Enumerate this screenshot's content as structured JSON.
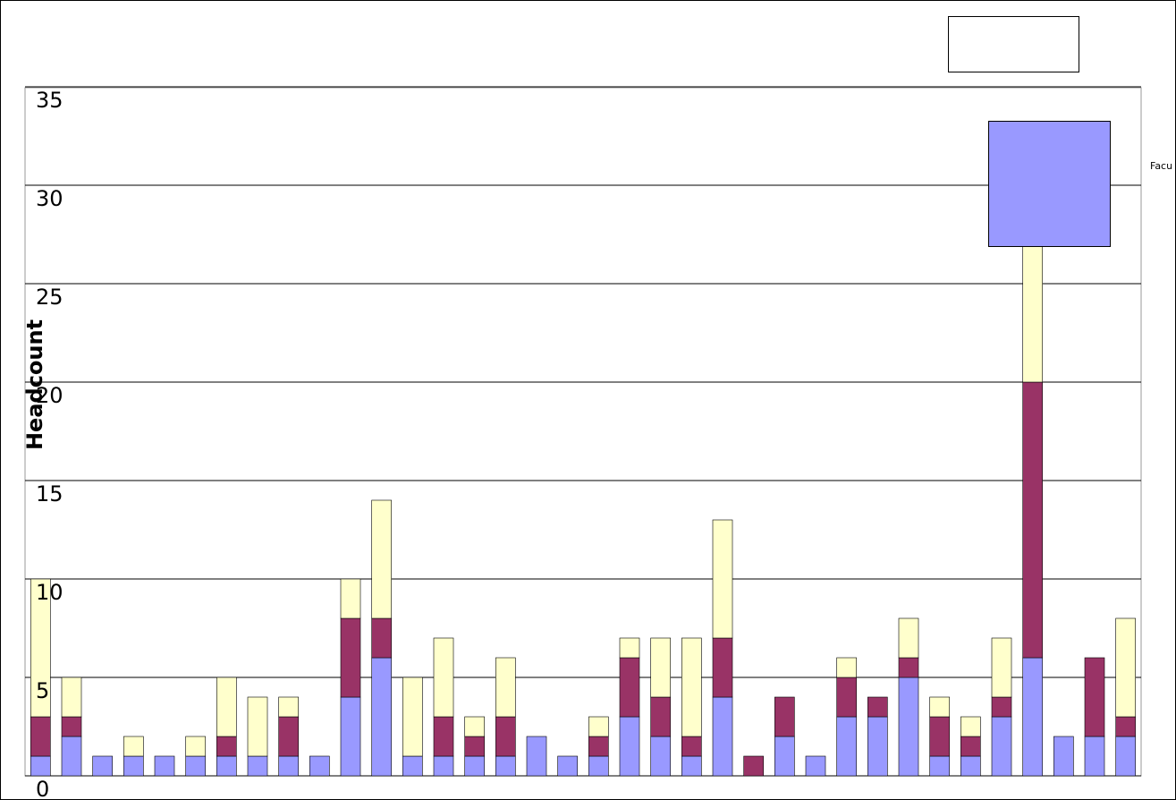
{
  "chart_data": {
    "type": "stacked_bar",
    "y_label": "Headcount",
    "categories": [
      null,
      null,
      null,
      null,
      null,
      null,
      null,
      null,
      null,
      null,
      null,
      null,
      null,
      null,
      null,
      null,
      null,
      null,
      null,
      null,
      null,
      null,
      null,
      null,
      null,
      null,
      null,
      null,
      null,
      null,
      null,
      null,
      null,
      null,
      null,
      null
    ],
    "series": [
      {
        "name": "Facu",
        "color": "#9999ff",
        "values": [
          1,
          2,
          1,
          1,
          1,
          1,
          1,
          1,
          1,
          1,
          4,
          6,
          1,
          1,
          1,
          1,
          2,
          1,
          1,
          3,
          2,
          1,
          4,
          0,
          2,
          1,
          3,
          3,
          5,
          1,
          1,
          3,
          6,
          2,
          2,
          2
        ]
      },
      {
        "name": null,
        "color": "#993366",
        "values": [
          2,
          1,
          0,
          0,
          0,
          0,
          1,
          0,
          2,
          0,
          4,
          2,
          0,
          2,
          1,
          2,
          0,
          0,
          1,
          3,
          2,
          1,
          3,
          1,
          2,
          0,
          2,
          1,
          1,
          2,
          1,
          1,
          14,
          0,
          4,
          1
        ]
      },
      {
        "name": null,
        "color": "#ffffcc",
        "values": [
          7,
          2,
          0,
          1,
          0,
          1,
          3,
          3,
          1,
          0,
          2,
          6,
          4,
          4,
          1,
          3,
          0,
          0,
          1,
          1,
          3,
          5,
          6,
          0,
          0,
          0,
          1,
          0,
          2,
          1,
          1,
          3,
          7,
          0,
          0,
          5
        ]
      }
    ],
    "ylim": [
      0,
      35
    ],
    "yticks": [
      0,
      5,
      10,
      15,
      20,
      25,
      30,
      35
    ],
    "grid": true,
    "legend": "right"
  }
}
